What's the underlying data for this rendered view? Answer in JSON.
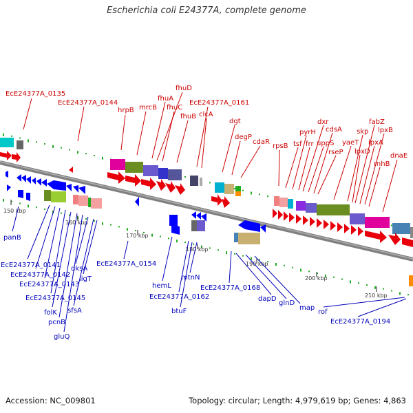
{
  "title": "Escherichia coli E24377A, complete genome",
  "footer": {
    "accession": "Accession: NC_009801",
    "topology": "Topology: circular; Length: 4,979,619 bp; Genes: 4,863"
  },
  "colors": {
    "forward_gene": "#e8000b",
    "reverse_gene": "#0000ff",
    "backbone": "#808080",
    "top_label": "#cc0000",
    "bottom_label": "#0000bb",
    "gc_tick": "#22aa22"
  },
  "ticks": [
    "150 kbp",
    "160 kbp",
    "170 kbp",
    "180 kbp",
    "190 kbp",
    "200 kbp",
    "210 kbp"
  ],
  "top_labels": [
    "EcE24377A_0135",
    "EcE24377A_0144",
    "hrpB",
    "mrcB",
    "fhuA",
    "fhuD",
    "fhuC",
    "fhuB",
    "EcE24377A_0161",
    "clcA",
    "dgt",
    "degP",
    "cdaR",
    "rpsB",
    "tsf",
    "pyrH",
    "frr",
    "dxr",
    "uppS",
    "cdsA",
    "rseP",
    "yaeT",
    "skp",
    "lpxD",
    "fabZ",
    "lpxA",
    "lpxB",
    "rnhB",
    "dnaE"
  ],
  "bottom_labels": [
    "panB",
    "EcE24377A_0141",
    "EcE24377A_0142",
    "EcE24377A_0143",
    "EcE24377A_0145",
    "folK",
    "pcnB",
    "gluQ",
    "dksA",
    "sfsA",
    "ligT",
    "EcE24377A_0154",
    "hemL",
    "EcE24377A_0162",
    "btuF",
    "mtnN",
    "EcE24377A_0168",
    "dapD",
    "glnD",
    "map",
    "rof",
    "EcE24377A_0194"
  ]
}
